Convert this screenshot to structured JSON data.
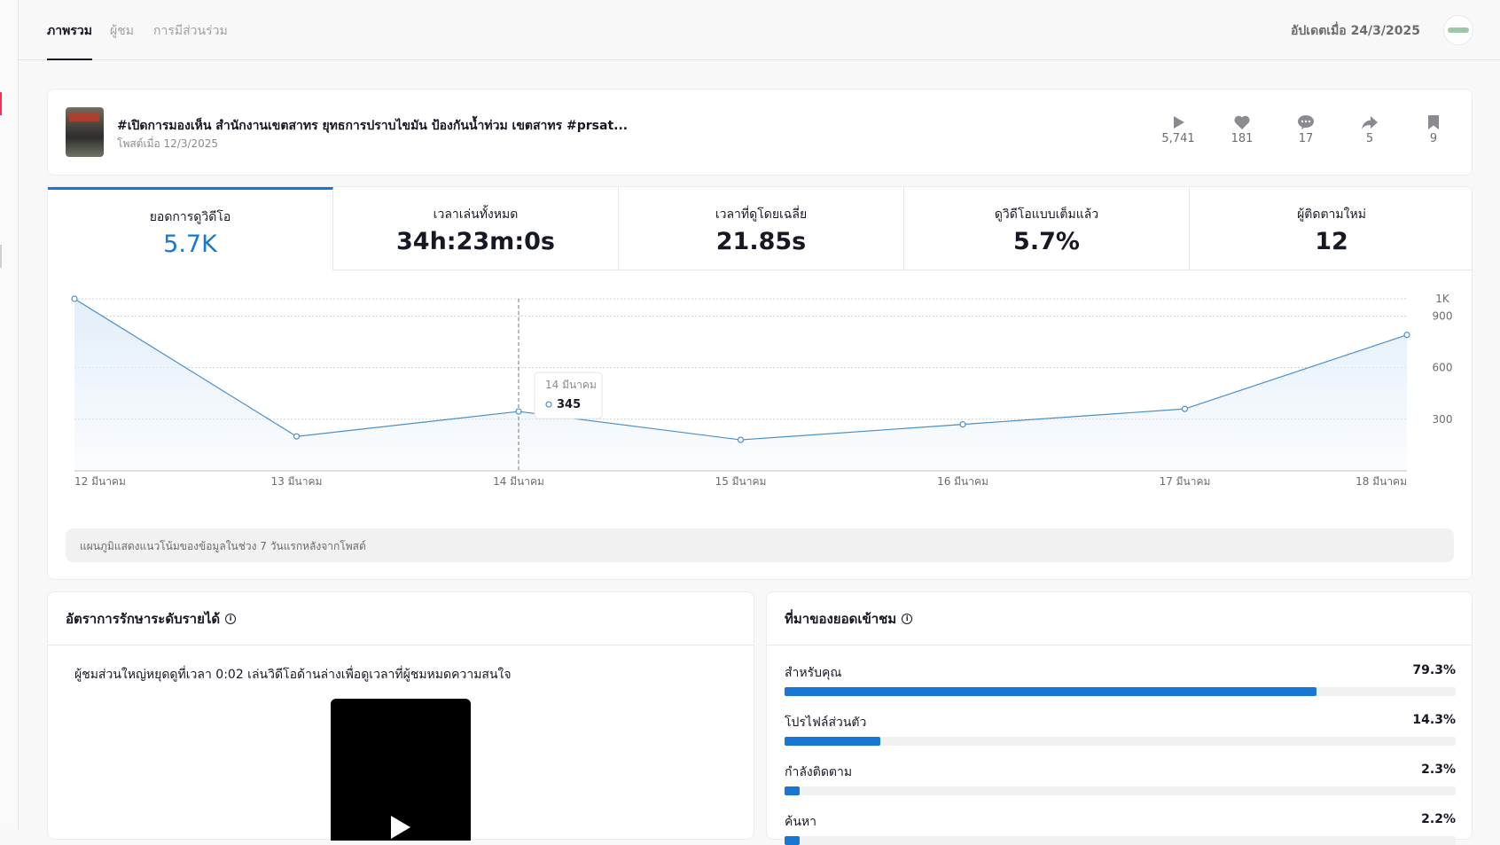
{
  "nav": {
    "tabs": [
      {
        "label": "ภาพรวม",
        "active": true
      },
      {
        "label": "ผู้ชม",
        "active": false
      },
      {
        "label": "การมีส่วนร่วม",
        "active": false
      }
    ],
    "updated": "อัปเดตเมื่อ 24/3/2025"
  },
  "post": {
    "title": "#เปิดการมองเห็น สำนักงานเขตสาทร ยุทธการปราบไขมัน ป้องกันน้ำท่วม เขตสาทร #prsat...",
    "date": "โพสต์เมื่อ 12/3/2025",
    "stats": [
      {
        "icon": "play-icon",
        "value": "5,741"
      },
      {
        "icon": "heart-icon",
        "value": "181"
      },
      {
        "icon": "comment-icon",
        "value": "17"
      },
      {
        "icon": "share-icon",
        "value": "5"
      },
      {
        "icon": "bookmark-icon",
        "value": "9"
      }
    ]
  },
  "metrics": [
    {
      "label": "ยอดการดูวิดีโอ",
      "value": "5.7K"
    },
    {
      "label": "เวลาเล่นทั้งหมด",
      "value": "34h:23m:0s"
    },
    {
      "label": "เวลาที่ดูโดยเฉลี่ย",
      "value": "21.85s"
    },
    {
      "label": "ดูวิดีโอแบบเต็มแล้ว",
      "value": "5.7%"
    },
    {
      "label": "ผู้ติดตามใหม่",
      "value": "12"
    }
  ],
  "chart_data": {
    "type": "area",
    "x": [
      "12 มีนาคม",
      "13 มีนาคม",
      "14 มีนาคม",
      "15 มีนาคม",
      "16 มีนาคม",
      "17 มีนาคม",
      "18 มีนาคม"
    ],
    "values": [
      1000,
      200,
      345,
      180,
      270,
      360,
      790
    ],
    "y_ticks": [
      300,
      600,
      900,
      1000
    ],
    "y_tick_labels": [
      "300",
      "600",
      "900",
      "1K"
    ],
    "ylim": [
      0,
      1000
    ],
    "tooltip": {
      "date": "14 มีนาคม",
      "value": "345"
    },
    "grid": true,
    "colors": {
      "line": "#4a90c8",
      "fill": "#e3eef9"
    }
  },
  "chart_note": "แผนภูมิแสดงแนวโน้มของข้อมูลในช่วง 7 วันแรกหลังจากโพสต์",
  "retention": {
    "title": "อัตราการรักษาระดับรายได้",
    "text": "ผู้ชมส่วนใหญ่หยุดดูที่เวลา 0:02 เล่นวิดีโอด้านล่างเพื่อดูเวลาที่ผู้ชมหมดความสนใจ"
  },
  "sources": {
    "title": "ที่มาของยอดเข้าชม",
    "items": [
      {
        "label": "สำหรับคุณ",
        "pct": "79.3%",
        "value": 79.3
      },
      {
        "label": "โปรไฟล์ส่วนตัว",
        "pct": "14.3%",
        "value": 14.3
      },
      {
        "label": "กำลังติดตาม",
        "pct": "2.3%",
        "value": 2.3
      },
      {
        "label": "ค้นหา",
        "pct": "2.2%",
        "value": 2.2
      }
    ]
  },
  "accent": "#1877d2"
}
